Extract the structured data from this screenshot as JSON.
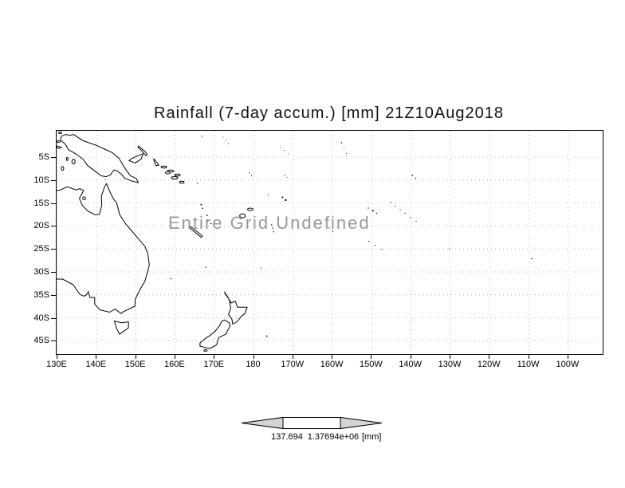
{
  "title": "Rainfall (7-day accum.) [mm] 21Z10Aug2018",
  "map": {
    "undefined_message": "Entire Grid Undefined",
    "lat_ticks": [
      "5S",
      "10S",
      "15S",
      "20S",
      "25S",
      "30S",
      "35S",
      "40S",
      "45S"
    ],
    "lon_ticks": [
      "130E",
      "140E",
      "150E",
      "160E",
      "170E",
      "180",
      "170W",
      "160W",
      "150W",
      "140W",
      "130W",
      "120W",
      "110W",
      "100W"
    ]
  },
  "colorbar": {
    "tick_left": "137.694",
    "tick_right": "1.37694e+06",
    "unit": "[mm]"
  },
  "colors": {
    "background": "#ffffff",
    "coastline": "#000000",
    "undefined_text": "#9a9a9a",
    "colorbar_arrow_fill": "#d4d4d4"
  },
  "chart_data": {
    "type": "heatmap",
    "title": "Rainfall (7-day accum.) [mm] 21Z10Aug2018",
    "x_ticks": [
      "130E",
      "140E",
      "150E",
      "160E",
      "170E",
      "180",
      "170W",
      "160W",
      "150W",
      "140W",
      "130W",
      "120W",
      "110W",
      "100W"
    ],
    "y_ticks": [
      "5S",
      "10S",
      "15S",
      "20S",
      "25S",
      "30S",
      "35S",
      "40S",
      "45S"
    ],
    "values": [],
    "annotation": "Entire Grid Undefined",
    "colorbar_ticks": [
      "137.694",
      "1.37694e+06"
    ],
    "colorbar_unit": "[mm]",
    "grid": true,
    "legend_position": "bottom"
  }
}
